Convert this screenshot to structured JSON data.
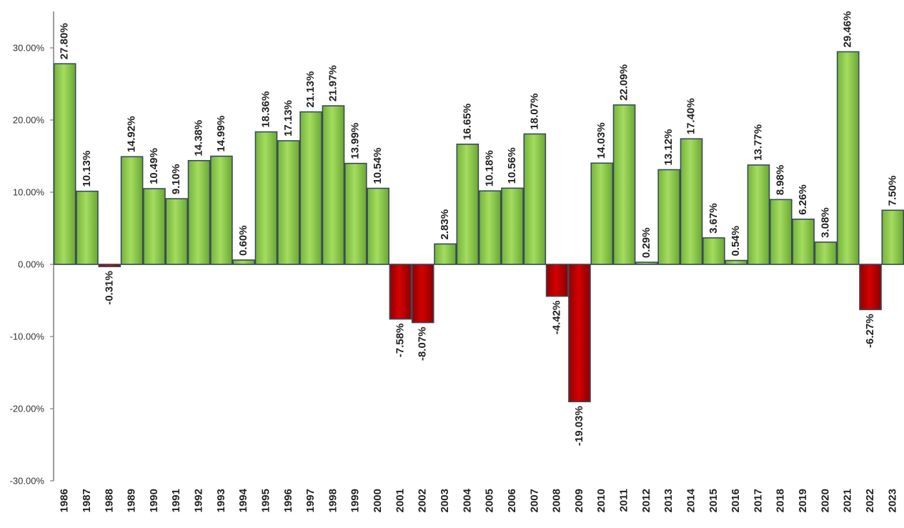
{
  "chart_data": {
    "type": "bar",
    "title": "",
    "xlabel": "",
    "ylabel": "",
    "ylim": [
      -30,
      35
    ],
    "yticks": [
      -30,
      -20,
      -10,
      0,
      10,
      20,
      30
    ],
    "ytick_labels": [
      "-30.00%",
      "-20.00%",
      "-10.00%",
      "0.00%",
      "10.00%",
      "20.00%",
      "30.00%"
    ],
    "grid": false,
    "legend": "none",
    "colors": {
      "positive": "#92d050",
      "positive_dark": "#5e9a28",
      "negative": "#c00000",
      "negative_dark": "#7a0000",
      "edge": "#3a4a5c",
      "axis": "#7f7f7f"
    },
    "categories": [
      "1986",
      "1987",
      "1988",
      "1989",
      "1990",
      "1991",
      "1992",
      "1993",
      "1994",
      "1995",
      "1996",
      "1997",
      "1998",
      "1999",
      "2000",
      "2001",
      "2002",
      "2003",
      "2004",
      "2005",
      "2006",
      "2007",
      "2008",
      "2009",
      "2010",
      "2011",
      "2012",
      "2013",
      "2014",
      "2015",
      "2016",
      "2017",
      "2018",
      "2019",
      "2020",
      "2021",
      "2022",
      "2023"
    ],
    "values": [
      27.8,
      10.13,
      -0.31,
      14.92,
      10.49,
      9.1,
      14.38,
      14.99,
      0.6,
      18.36,
      17.13,
      21.13,
      21.97,
      13.99,
      10.54,
      -7.58,
      -8.07,
      2.83,
      16.65,
      10.18,
      10.56,
      18.07,
      -4.42,
      -19.03,
      14.03,
      22.09,
      0.29,
      13.12,
      17.4,
      3.67,
      0.54,
      13.77,
      8.98,
      6.26,
      3.08,
      29.46,
      -6.27,
      7.5
    ],
    "labels": [
      "27.80%",
      "10.13%",
      "-0.31%",
      "14.92%",
      "10.49%",
      "9.10%",
      "14.38%",
      "14.99%",
      "0.60%",
      "18.36%",
      "17.13%",
      "21.13%",
      "21.97%",
      "13.99%",
      "10.54%",
      "-7.58%",
      "-8.07%",
      "2.83%",
      "16.65%",
      "10.18%",
      "10.56%",
      "18.07%",
      "-4.42%",
      "-19.03%",
      "14.03%",
      "22.09%",
      "0.29%",
      "13.12%",
      "17.40%",
      "3.67%",
      "0.54%",
      "13.77%",
      "8.98%",
      "6.26%",
      "3.08%",
      "29.46%",
      "-6.27%",
      "7.50%"
    ]
  }
}
